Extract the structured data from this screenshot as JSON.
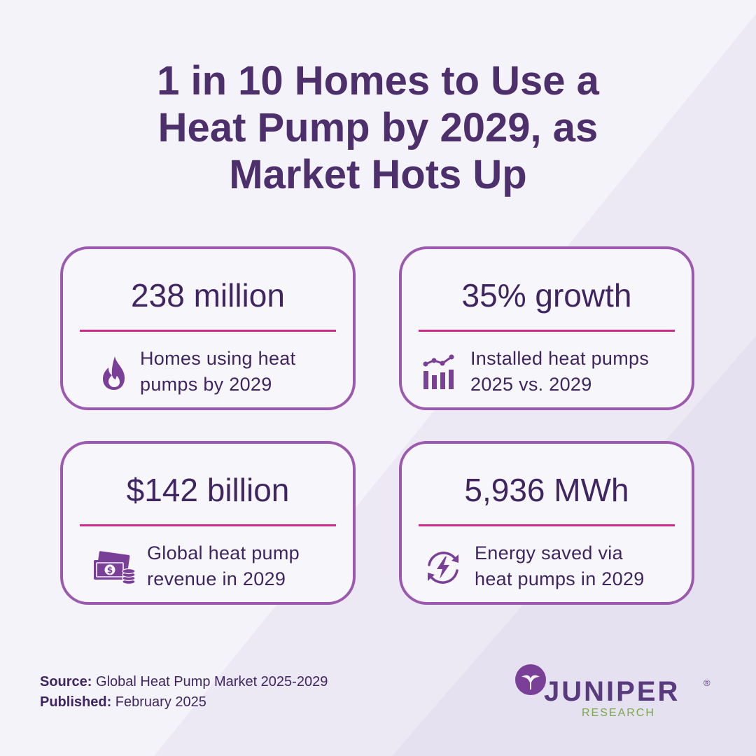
{
  "title": {
    "line1": "1 in 10 Homes to Use a",
    "line2": "Heat Pump by 2029, as",
    "line3": "Market Hots Up"
  },
  "cards": [
    {
      "stat": "238 million",
      "desc_line1": "Homes using heat",
      "desc_line2": "pumps by 2029",
      "icon": "flame-icon"
    },
    {
      "stat": "35% growth",
      "desc_line1": "Installed heat pumps",
      "desc_line2": "2025 vs. 2029",
      "icon": "bar-line-chart-icon"
    },
    {
      "stat": "$142 billion",
      "desc_line1": "Global heat pump",
      "desc_line2": "revenue in 2029",
      "icon": "money-coins-icon"
    },
    {
      "stat": "5,936 MWh",
      "desc_line1": "Energy saved via",
      "desc_line2": "heat pumps in 2029",
      "icon": "energy-cycle-icon"
    }
  ],
  "footer": {
    "source_label": "Source:",
    "source_value": "Global Heat Pump Market 2025-2029",
    "published_label": "Published:",
    "published_value": "February 2025"
  },
  "logo": {
    "name": "JUNIPER",
    "registered": "®",
    "subtitle": "RESEARCH"
  },
  "colors": {
    "title": "#4c2f6b",
    "card_border": "#9b5aad",
    "divider": "#cc2b8b",
    "icon": "#7a3f96",
    "logo_green": "#7aa84a"
  }
}
